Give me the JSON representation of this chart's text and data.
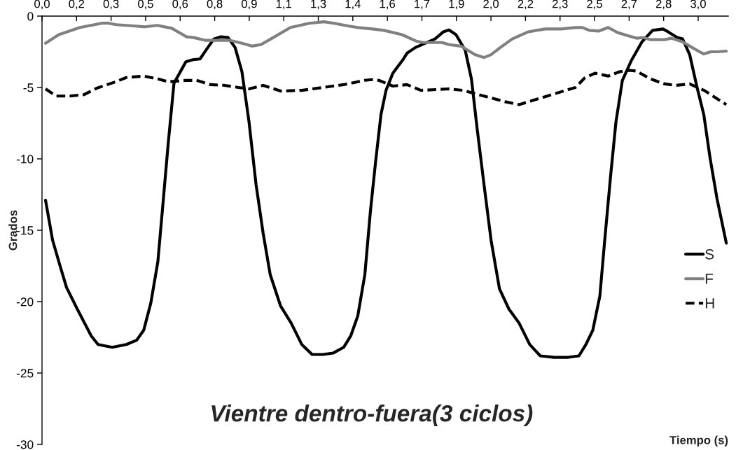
{
  "chart_data": {
    "type": "line",
    "title": "Vientre dentro-fuera(3 ciclos)",
    "xlabel": "Tiempo (s)",
    "ylabel": "Grados",
    "xlim": [
      0,
      3.11
    ],
    "ylim": [
      -30,
      0
    ],
    "xticks": [
      {
        "value": 0,
        "label": "0,0"
      },
      {
        "value": 0.1565,
        "label": "0,2"
      },
      {
        "value": 0.313,
        "label": "0,3"
      },
      {
        "value": 0.4695,
        "label": "0,5"
      },
      {
        "value": 0.626,
        "label": "0,6"
      },
      {
        "value": 0.7825,
        "label": "0,8"
      },
      {
        "value": 0.939,
        "label": "0,9"
      },
      {
        "value": 1.0955,
        "label": "1,1"
      },
      {
        "value": 1.252,
        "label": "1,3"
      },
      {
        "value": 1.4085,
        "label": "1,4"
      },
      {
        "value": 1.565,
        "label": "1,6"
      },
      {
        "value": 1.7215,
        "label": "1,7"
      },
      {
        "value": 1.878,
        "label": "1,9"
      },
      {
        "value": 2.0345,
        "label": "2,0"
      },
      {
        "value": 2.191,
        "label": "2,2"
      },
      {
        "value": 2.3475,
        "label": "2,3"
      },
      {
        "value": 2.504,
        "label": "2,5"
      },
      {
        "value": 2.6605,
        "label": "2,7"
      },
      {
        "value": 2.817,
        "label": "2,8"
      },
      {
        "value": 2.9735,
        "label": "3,0"
      }
    ],
    "yticks": [
      0,
      -5,
      -10,
      -15,
      -20,
      -25,
      -30
    ],
    "grid": false,
    "legend": "bottom right",
    "marker": "none",
    "series": [
      {
        "name": "S",
        "color": "#000000",
        "line_style": "solid",
        "x": [
          0.016,
          0.048,
          0.08,
          0.111,
          0.159,
          0.223,
          0.254,
          0.318,
          0.382,
          0.429,
          0.461,
          0.493,
          0.525,
          0.55,
          0.572,
          0.598,
          0.652,
          0.684,
          0.716,
          0.747,
          0.779,
          0.811,
          0.843,
          0.875,
          0.906,
          0.938,
          0.97,
          1.002,
          1.034,
          1.081,
          1.129,
          1.177,
          1.224,
          1.272,
          1.32,
          1.367,
          1.399,
          1.431,
          1.463,
          1.488,
          1.511,
          1.536,
          1.559,
          1.59,
          1.638,
          1.654,
          1.692,
          1.781,
          1.819,
          1.844,
          1.876,
          1.918,
          1.946,
          1.972,
          2.003,
          2.035,
          2.073,
          2.115,
          2.162,
          2.21,
          2.258,
          2.321,
          2.385,
          2.433,
          2.465,
          2.496,
          2.528,
          2.55,
          2.576,
          2.601,
          2.63,
          2.671,
          2.719,
          2.767,
          2.814,
          2.837,
          2.878,
          2.903,
          2.935,
          2.967,
          2.999,
          3.027,
          3.059,
          3.101
        ],
        "values": [
          -12.9,
          -15.7,
          -17.4,
          -19.0,
          -20.5,
          -22.4,
          -23.0,
          -23.2,
          -23.0,
          -22.7,
          -22.0,
          -20.1,
          -17.2,
          -12.8,
          -8.9,
          -4.7,
          -3.2,
          -3.05,
          -3.0,
          -2.3,
          -1.6,
          -1.45,
          -1.5,
          -2.2,
          -3.9,
          -7.4,
          -11.8,
          -15.2,
          -18.1,
          -20.3,
          -21.5,
          -23.0,
          -23.7,
          -23.7,
          -23.6,
          -23.2,
          -22.4,
          -21.0,
          -18.1,
          -13.7,
          -10.3,
          -6.9,
          -5.2,
          -4.0,
          -3.0,
          -2.6,
          -2.2,
          -1.6,
          -1.1,
          -0.97,
          -1.3,
          -2.4,
          -4.4,
          -7.9,
          -11.8,
          -15.7,
          -19.1,
          -20.5,
          -21.5,
          -23.0,
          -23.8,
          -23.9,
          -23.9,
          -23.8,
          -23.0,
          -22.0,
          -19.6,
          -15.7,
          -11.3,
          -7.4,
          -4.5,
          -3.1,
          -1.8,
          -1.0,
          -0.9,
          -1.1,
          -1.5,
          -1.6,
          -2.7,
          -4.9,
          -6.9,
          -9.9,
          -12.8,
          -15.9
        ]
      },
      {
        "name": "F",
        "color": "#808080",
        "line_style": "solid",
        "x": [
          0.016,
          0.076,
          0.172,
          0.27,
          0.302,
          0.337,
          0.423,
          0.467,
          0.522,
          0.588,
          0.655,
          0.687,
          0.741,
          0.852,
          0.906,
          0.951,
          0.992,
          1.037,
          1.126,
          1.212,
          1.278,
          1.323,
          1.39,
          1.431,
          1.498,
          1.549,
          1.631,
          1.695,
          1.727,
          1.813,
          1.844,
          1.898,
          1.962,
          2.003,
          2.035,
          2.077,
          2.131,
          2.204,
          2.28,
          2.353,
          2.417,
          2.449,
          2.48,
          2.522,
          2.566,
          2.608,
          2.639,
          2.694,
          2.725,
          2.757,
          2.821,
          2.852,
          2.903,
          2.935,
          2.98,
          2.999,
          3.031,
          3.062,
          3.101
        ],
        "values": [
          -1.9,
          -1.3,
          -0.8,
          -0.5,
          -0.5,
          -0.6,
          -0.7,
          -0.75,
          -0.65,
          -0.85,
          -1.45,
          -1.5,
          -1.7,
          -1.7,
          -1.9,
          -2.1,
          -2.0,
          -1.6,
          -0.8,
          -0.5,
          -0.4,
          -0.5,
          -0.7,
          -0.8,
          -0.9,
          -1.0,
          -1.3,
          -1.75,
          -1.85,
          -1.85,
          -2.0,
          -2.1,
          -2.7,
          -2.9,
          -2.7,
          -2.2,
          -1.6,
          -1.1,
          -0.9,
          -0.9,
          -0.8,
          -0.8,
          -1.0,
          -1.05,
          -0.8,
          -1.15,
          -1.3,
          -1.55,
          -1.5,
          -1.65,
          -1.65,
          -1.55,
          -1.8,
          -2.1,
          -2.5,
          -2.65,
          -2.5,
          -2.5,
          -2.45
        ]
      },
      {
        "name": "H",
        "color": "#000000",
        "line_style": "dashed",
        "x": [
          0.016,
          0.064,
          0.127,
          0.191,
          0.248,
          0.334,
          0.382,
          0.461,
          0.525,
          0.572,
          0.652,
          0.7,
          0.763,
          0.827,
          0.89,
          0.938,
          1.002,
          1.081,
          1.177,
          1.272,
          1.367,
          1.463,
          1.495,
          1.526,
          1.59,
          1.654,
          1.717,
          1.844,
          1.908,
          2.003,
          2.099,
          2.162,
          2.226,
          2.29,
          2.353,
          2.417,
          2.458,
          2.506,
          2.566,
          2.617,
          2.662,
          2.694,
          2.757,
          2.821,
          2.872,
          2.935,
          3.0,
          3.101
        ],
        "values": [
          -5.1,
          -5.6,
          -5.6,
          -5.5,
          -5.05,
          -4.6,
          -4.3,
          -4.2,
          -4.4,
          -4.6,
          -4.5,
          -4.5,
          -4.8,
          -4.85,
          -5.0,
          -5.1,
          -4.85,
          -5.25,
          -5.2,
          -5.0,
          -4.8,
          -4.5,
          -4.45,
          -4.5,
          -4.9,
          -4.8,
          -5.2,
          -5.1,
          -5.2,
          -5.6,
          -6.0,
          -6.2,
          -5.9,
          -5.6,
          -5.3,
          -5.0,
          -4.35,
          -4.0,
          -4.2,
          -3.9,
          -3.8,
          -3.85,
          -4.4,
          -4.75,
          -4.85,
          -4.75,
          -5.2,
          -6.2
        ]
      }
    ]
  }
}
